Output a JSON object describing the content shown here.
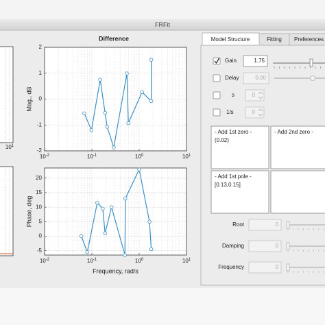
{
  "window": {
    "title": "FRFit"
  },
  "left_plot": {
    "xtick": {
      "value": 10,
      "label": "10",
      "exponent": "1"
    }
  },
  "difference": {
    "title": "Difference",
    "color": "#3a8ec4",
    "grid": true,
    "minor_grid": true,
    "log_x": true,
    "magnitude": {
      "ylabel": "Mag., dB",
      "xlim": [
        0.01,
        10
      ],
      "ylim": [
        -2,
        2
      ],
      "xticks": [
        {
          "value": 0.01,
          "label": "10",
          "exponent": "-2"
        },
        {
          "value": 0.1,
          "label": "10",
          "exponent": "-1"
        },
        {
          "value": 1,
          "label": "10",
          "exponent": "0"
        },
        {
          "value": 10,
          "label": "10",
          "exponent": "1"
        }
      ],
      "yticks": [
        -2,
        -1,
        0,
        1,
        2
      ],
      "x": [
        0.069,
        0.098,
        0.15,
        0.19,
        0.21,
        0.29,
        0.55,
        0.59,
        1.15,
        1.8,
        1.8
      ],
      "values": [
        -0.55,
        -1.2,
        0.75,
        -0.53,
        -1.07,
        -1.87,
        0.99,
        -0.93,
        0.27,
        -0.08,
        1.52
      ]
    },
    "phase": {
      "ylabel": "Phase, deg",
      "xlabel": "Frequency, rad/s",
      "xlim": [
        0.01,
        10
      ],
      "ylim": [
        -6.5,
        23.5
      ],
      "xticks": [
        {
          "value": 0.01,
          "label": "10",
          "exponent": "-2"
        },
        {
          "value": 0.1,
          "label": "10",
          "exponent": "-1"
        },
        {
          "value": 1,
          "label": "10",
          "exponent": "0"
        },
        {
          "value": 10,
          "label": "10",
          "exponent": "1"
        }
      ],
      "yticks": [
        -5,
        0,
        5,
        10,
        15,
        20
      ],
      "x": [
        0.06,
        0.08,
        0.13,
        0.17,
        0.19,
        0.26,
        0.5,
        0.51,
        1.0,
        1.65,
        1.8
      ],
      "values": [
        0,
        -5.5,
        11.5,
        9.5,
        1,
        10,
        -6.5,
        13,
        23,
        5,
        -4.5
      ]
    }
  },
  "tabs": [
    "Model Structure",
    "Fitting",
    "Preferences"
  ],
  "model": {
    "gain": {
      "label": "Gain",
      "value": "1.75",
      "checked": true
    },
    "delay": {
      "label": "Delay",
      "value": "0.00",
      "checked": false
    },
    "s": {
      "label": "s",
      "value": "0",
      "checked": false
    },
    "inv_s": {
      "label": "1/s",
      "value": "0",
      "checked": false
    }
  },
  "lists": [
    {
      "header": "- Add 1st zero -",
      "items": [
        "(0.02)"
      ]
    },
    {
      "header": "- Add 2nd zero -",
      "items": []
    },
    {
      "header": "- Add 1st pole -",
      "items": [
        "[0.13,0.15]"
      ]
    }
  ],
  "params": [
    {
      "label": "Root",
      "value": "0"
    },
    {
      "label": "Damping",
      "value": "0"
    },
    {
      "label": "Frequency",
      "value": "0"
    }
  ]
}
